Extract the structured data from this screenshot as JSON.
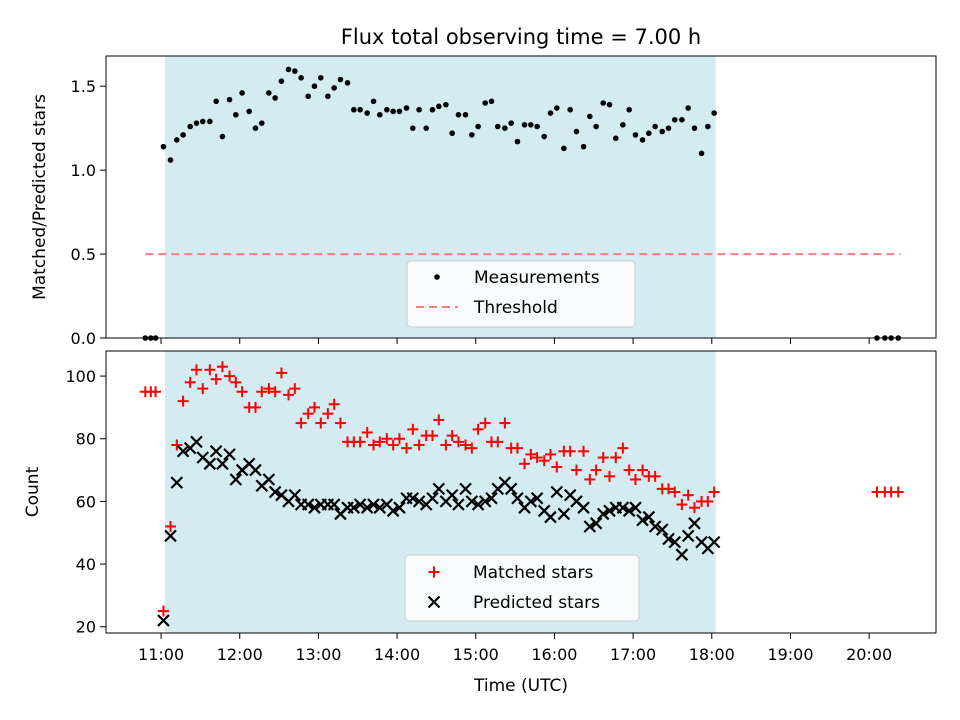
{
  "title": "Flux total observing time = 7.00 h",
  "colors": {
    "shade": "#d4ebf1",
    "matched": "#ff0000",
    "predicted": "#000000",
    "measurements": "#000000",
    "threshold": "#f08080"
  },
  "chart_data": [
    {
      "type": "scatter",
      "ylabel": "Matched/Predicted stars",
      "ylim": [
        0,
        1.68
      ],
      "yticks": [
        0.0,
        0.5,
        1.0,
        1.5
      ],
      "ytick_labels": [
        "0.0",
        "0.5",
        "1.0",
        "1.5"
      ],
      "shaded_interval": [
        11.05,
        18.05
      ],
      "legend": {
        "placement": "lower-center",
        "entries": [
          "Measurements",
          "Threshold"
        ]
      },
      "threshold": {
        "name": "Threshold",
        "y": 0.5,
        "x": [
          10.8,
          20.4
        ]
      },
      "series": [
        {
          "name": "Measurements",
          "x": [
            10.8,
            10.87,
            10.93,
            11.03,
            11.12,
            11.2,
            11.28,
            11.37,
            11.45,
            11.53,
            11.62,
            11.7,
            11.78,
            11.87,
            11.95,
            12.03,
            12.12,
            12.2,
            12.28,
            12.37,
            12.45,
            12.53,
            12.62,
            12.7,
            12.78,
            12.87,
            12.95,
            13.03,
            13.12,
            13.2,
            13.28,
            13.37,
            13.45,
            13.53,
            13.62,
            13.7,
            13.78,
            13.87,
            13.95,
            14.03,
            14.12,
            14.2,
            14.28,
            14.37,
            14.45,
            14.53,
            14.62,
            14.7,
            14.78,
            14.87,
            14.95,
            15.03,
            15.12,
            15.2,
            15.28,
            15.37,
            15.45,
            15.53,
            15.62,
            15.7,
            15.78,
            15.87,
            15.95,
            16.03,
            16.12,
            16.2,
            16.28,
            16.37,
            16.45,
            16.53,
            16.62,
            16.7,
            16.78,
            16.87,
            16.95,
            17.03,
            17.12,
            17.2,
            17.28,
            17.37,
            17.45,
            17.53,
            17.62,
            17.7,
            17.78,
            17.87,
            17.95,
            18.03,
            20.1,
            20.2,
            20.28,
            20.37
          ],
          "y": [
            0,
            0,
            0,
            1.14,
            1.06,
            1.18,
            1.21,
            1.26,
            1.28,
            1.29,
            1.29,
            1.41,
            1.2,
            1.42,
            1.33,
            1.46,
            1.35,
            1.25,
            1.28,
            1.46,
            1.43,
            1.53,
            1.6,
            1.59,
            1.55,
            1.44,
            1.5,
            1.55,
            1.44,
            1.49,
            1.54,
            1.52,
            1.36,
            1.36,
            1.34,
            1.41,
            1.33,
            1.36,
            1.35,
            1.35,
            1.37,
            1.25,
            1.36,
            1.25,
            1.36,
            1.38,
            1.39,
            1.22,
            1.33,
            1.33,
            1.21,
            1.26,
            1.4,
            1.41,
            1.26,
            1.25,
            1.28,
            1.17,
            1.27,
            1.27,
            1.26,
            1.2,
            1.34,
            1.37,
            1.13,
            1.36,
            1.23,
            1.14,
            1.32,
            1.26,
            1.4,
            1.39,
            1.19,
            1.27,
            1.36,
            1.21,
            1.18,
            1.22,
            1.26,
            1.23,
            1.25,
            1.3,
            1.3,
            1.37,
            1.25,
            1.1,
            1.26,
            1.34,
            0,
            0,
            0,
            0
          ]
        }
      ]
    },
    {
      "type": "scatter",
      "ylabel": "Count",
      "xlabel": "Time (UTC)",
      "ylim": [
        18,
        108
      ],
      "yticks": [
        20,
        40,
        60,
        80,
        100
      ],
      "ytick_labels": [
        "20",
        "40",
        "60",
        "80",
        "100"
      ],
      "xlim": [
        10.3,
        20.85
      ],
      "xticks": [
        11,
        12,
        13,
        14,
        15,
        16,
        17,
        18,
        19,
        20
      ],
      "xtick_labels": [
        "11:00",
        "12:00",
        "13:00",
        "14:00",
        "15:00",
        "16:00",
        "17:00",
        "18:00",
        "19:00",
        "20:00"
      ],
      "shaded_interval": [
        11.05,
        18.05
      ],
      "legend": {
        "placement": "lower-center",
        "entries": [
          "Matched stars",
          "Predicted stars"
        ]
      },
      "series": [
        {
          "name": "Matched stars",
          "marker": "plus",
          "x": [
            10.8,
            10.87,
            10.93,
            11.03,
            11.12,
            11.2,
            11.28,
            11.37,
            11.45,
            11.53,
            11.62,
            11.7,
            11.78,
            11.87,
            11.95,
            12.03,
            12.12,
            12.2,
            12.28,
            12.37,
            12.45,
            12.53,
            12.62,
            12.7,
            12.78,
            12.87,
            12.95,
            13.03,
            13.12,
            13.2,
            13.28,
            13.37,
            13.45,
            13.53,
            13.62,
            13.7,
            13.78,
            13.87,
            13.95,
            14.03,
            14.12,
            14.2,
            14.28,
            14.37,
            14.45,
            14.53,
            14.62,
            14.7,
            14.78,
            14.87,
            14.95,
            15.03,
            15.12,
            15.2,
            15.28,
            15.37,
            15.45,
            15.53,
            15.62,
            15.7,
            15.78,
            15.87,
            15.95,
            16.03,
            16.12,
            16.2,
            16.28,
            16.37,
            16.45,
            16.53,
            16.62,
            16.7,
            16.78,
            16.87,
            16.95,
            17.03,
            17.12,
            17.2,
            17.28,
            17.37,
            17.45,
            17.53,
            17.62,
            17.7,
            17.78,
            17.87,
            17.95,
            18.03,
            20.1,
            20.2,
            20.28,
            20.37
          ],
          "y": [
            95,
            95,
            95,
            25,
            52,
            78,
            92,
            98,
            102,
            96,
            102,
            99,
            103,
            100,
            98,
            95,
            90,
            90,
            95,
            96,
            95,
            101,
            94,
            96,
            85,
            88,
            90,
            85,
            88,
            91,
            85,
            79,
            79,
            79,
            82,
            78,
            79,
            80,
            78,
            80,
            77,
            83,
            78,
            81,
            81,
            86,
            78,
            81,
            79,
            78,
            77,
            83,
            85,
            79,
            79,
            85,
            77,
            77,
            72,
            75,
            74,
            73,
            75,
            71,
            76,
            76,
            70,
            76,
            67,
            70,
            74,
            68,
            74,
            77,
            70,
            67,
            70,
            68,
            68,
            64,
            64,
            63,
            59,
            62,
            58,
            60,
            60,
            63,
            63,
            63,
            63,
            63
          ]
        },
        {
          "name": "Predicted stars",
          "marker": "x",
          "x": [
            11.03,
            11.12,
            11.2,
            11.28,
            11.37,
            11.45,
            11.53,
            11.62,
            11.7,
            11.78,
            11.87,
            11.95,
            12.03,
            12.12,
            12.2,
            12.28,
            12.37,
            12.45,
            12.53,
            12.62,
            12.7,
            12.78,
            12.87,
            12.95,
            13.03,
            13.12,
            13.2,
            13.28,
            13.37,
            13.45,
            13.53,
            13.62,
            13.7,
            13.78,
            13.87,
            13.95,
            14.03,
            14.12,
            14.2,
            14.28,
            14.37,
            14.45,
            14.53,
            14.62,
            14.7,
            14.78,
            14.87,
            14.95,
            15.03,
            15.12,
            15.2,
            15.28,
            15.37,
            15.45,
            15.53,
            15.62,
            15.7,
            15.78,
            15.87,
            15.95,
            16.03,
            16.12,
            16.2,
            16.28,
            16.37,
            16.45,
            16.53,
            16.62,
            16.7,
            16.78,
            16.87,
            16.95,
            17.03,
            17.12,
            17.2,
            17.28,
            17.37,
            17.45,
            17.53,
            17.62,
            17.7,
            17.78,
            17.87,
            17.95,
            18.03
          ],
          "y": [
            22,
            49,
            66,
            76,
            77,
            79,
            74,
            72,
            76,
            72,
            75,
            67,
            70,
            72,
            70,
            65,
            67,
            63,
            62,
            60,
            62,
            59,
            59,
            58,
            59,
            59,
            59,
            56,
            58,
            58,
            59,
            58,
            59,
            58,
            59,
            57,
            58,
            61,
            61,
            60,
            59,
            61,
            64,
            60,
            62,
            59,
            64,
            60,
            59,
            60,
            61,
            64,
            66,
            64,
            61,
            58,
            60,
            61,
            57,
            55,
            63,
            56,
            62,
            60,
            58,
            52,
            53,
            56,
            57,
            58,
            58,
            57,
            58,
            54,
            55,
            52,
            51,
            48,
            47,
            43,
            49,
            53,
            47,
            45,
            47
          ]
        }
      ]
    }
  ]
}
